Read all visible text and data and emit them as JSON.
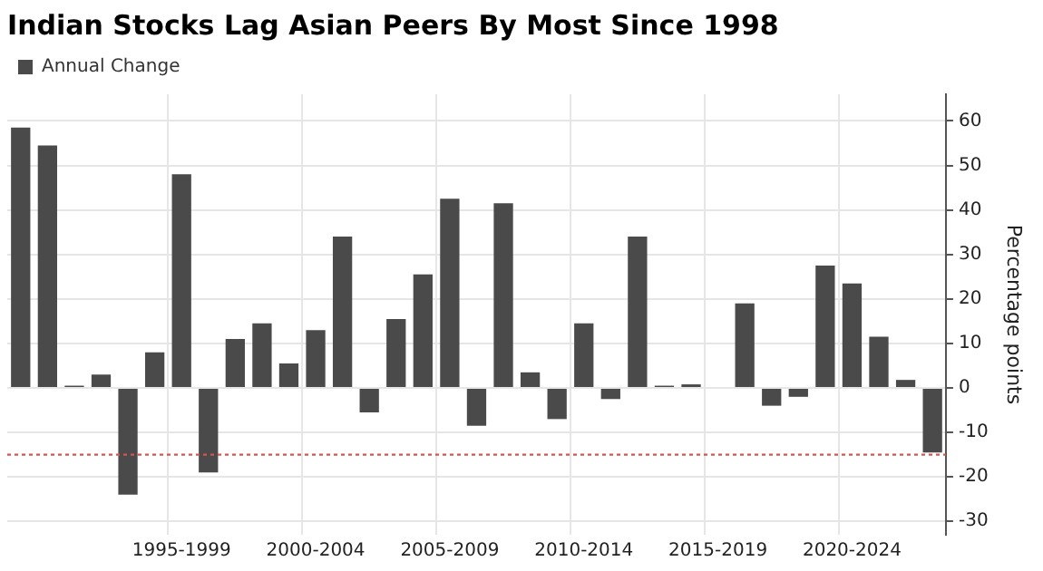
{
  "chart_data": {
    "type": "bar",
    "title": "Indian Stocks Lag Asian Peers By Most Since 1998",
    "ylabel": "Percentage points",
    "categories": [
      null,
      null,
      null,
      null,
      null,
      null,
      "1995-1999",
      null,
      null,
      null,
      null,
      "2000-2004",
      null,
      null,
      null,
      null,
      "2005-2009",
      null,
      null,
      null,
      null,
      "2010-2014",
      null,
      null,
      null,
      null,
      "2015-2019",
      null,
      null,
      null,
      null,
      "2020-2024",
      null,
      null,
      null
    ],
    "series": [
      {
        "name": "Annual Change",
        "color": "#4a4a4a",
        "values": [
          58.5,
          54.5,
          0.5,
          3,
          -24,
          8,
          48,
          -19,
          11,
          14.5,
          5.5,
          13,
          34,
          -5.5,
          15.5,
          25.5,
          42.5,
          -8.5,
          41.5,
          3.5,
          -7,
          14.5,
          -2.5,
          34,
          0.5,
          0.8,
          null,
          19,
          -4,
          -2,
          27.5,
          23.5,
          11.5,
          1.8,
          -14.5
        ]
      }
    ],
    "ylim": [
      -33,
      66
    ],
    "yticks": [
      -30,
      -20,
      -10,
      0,
      10,
      20,
      30,
      40,
      50,
      60
    ],
    "grid": true,
    "legend": "top left",
    "ref_lines": [
      {
        "axis": "y",
        "value": -15,
        "color": "#d9534f",
        "line_style": "dotted"
      }
    ]
  }
}
